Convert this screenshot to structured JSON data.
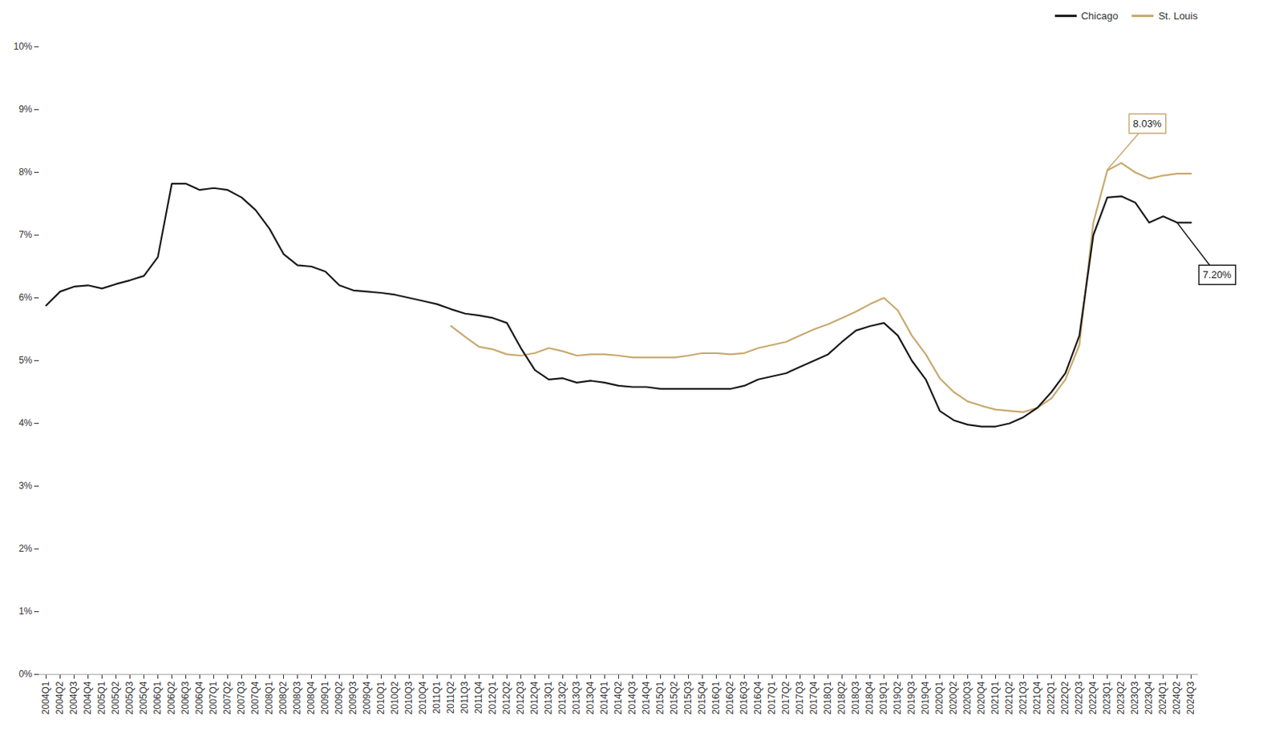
{
  "chart_data": {
    "type": "line",
    "categories": [
      "2004Q1",
      "2004Q2",
      "2004Q3",
      "2004Q4",
      "2005Q1",
      "2005Q2",
      "2005Q3",
      "2005Q4",
      "2006Q1",
      "2006Q2",
      "2006Q3",
      "2006Q4",
      "2007Q1",
      "2007Q2",
      "2007Q3",
      "2007Q4",
      "2008Q1",
      "2008Q2",
      "2008Q3",
      "2008Q4",
      "2009Q1",
      "2009Q2",
      "2009Q3",
      "2009Q4",
      "2010Q1",
      "2010Q2",
      "2010Q3",
      "2010Q4",
      "2011Q1",
      "2011Q2",
      "2011Q3",
      "2011Q4",
      "2012Q1",
      "2012Q2",
      "2012Q3",
      "2012Q4",
      "2013Q1",
      "2013Q2",
      "2013Q3",
      "2013Q4",
      "2014Q1",
      "2014Q2",
      "2014Q3",
      "2014Q4",
      "2015Q1",
      "2015Q2",
      "2015Q3",
      "2015Q4",
      "2016Q1",
      "2016Q2",
      "2016Q3",
      "2016Q4",
      "2017Q1",
      "2017Q2",
      "2017Q3",
      "2017Q4",
      "2018Q1",
      "2018Q2",
      "2018Q3",
      "2018Q4",
      "2019Q1",
      "2019Q2",
      "2019Q3",
      "2019Q4",
      "2020Q1",
      "2020Q2",
      "2020Q3",
      "2020Q4",
      "2021Q1",
      "2021Q2",
      "2021Q3",
      "2021Q4",
      "2022Q1",
      "2022Q2",
      "2022Q3",
      "2022Q4",
      "2023Q1",
      "2023Q2",
      "2023Q3",
      "2023Q4",
      "2024Q1",
      "2024Q2",
      "2024Q3"
    ],
    "series": [
      {
        "name": "Chicago",
        "color": "#1a1a1a",
        "values": [
          5.88,
          6.1,
          6.18,
          6.2,
          6.15,
          6.22,
          6.28,
          6.35,
          6.65,
          7.82,
          7.82,
          7.72,
          7.75,
          7.72,
          7.6,
          7.4,
          7.1,
          6.7,
          6.52,
          6.5,
          6.42,
          6.2,
          6.12,
          6.1,
          6.08,
          6.05,
          6.0,
          5.95,
          5.9,
          5.82,
          5.75,
          5.72,
          5.68,
          5.6,
          5.2,
          4.85,
          4.7,
          4.72,
          4.65,
          4.68,
          4.65,
          4.6,
          4.58,
          4.58,
          4.55,
          4.55,
          4.55,
          4.55,
          4.55,
          4.55,
          4.6,
          4.7,
          4.75,
          4.8,
          4.9,
          5.0,
          5.1,
          5.3,
          5.48,
          5.55,
          5.6,
          5.4,
          5.0,
          4.7,
          4.2,
          4.05,
          3.98,
          3.95,
          3.95,
          4.0,
          4.1,
          4.25,
          4.5,
          4.8,
          5.4,
          7.0,
          7.6,
          7.62,
          7.52,
          7.2,
          7.3,
          7.2,
          7.2
        ]
      },
      {
        "name": "St. Louis",
        "color": "#C8A96E",
        "values": [
          null,
          null,
          null,
          null,
          null,
          null,
          null,
          null,
          null,
          null,
          null,
          null,
          null,
          null,
          null,
          null,
          null,
          null,
          null,
          null,
          null,
          null,
          null,
          null,
          null,
          null,
          null,
          null,
          null,
          5.55,
          5.38,
          5.22,
          5.18,
          5.1,
          5.08,
          5.12,
          5.2,
          5.15,
          5.08,
          5.1,
          5.1,
          5.08,
          5.05,
          5.05,
          5.05,
          5.05,
          5.08,
          5.12,
          5.12,
          5.1,
          5.12,
          5.2,
          5.25,
          5.3,
          5.4,
          5.5,
          5.58,
          5.68,
          5.78,
          5.9,
          6.0,
          5.8,
          5.4,
          5.1,
          4.72,
          4.5,
          4.35,
          4.28,
          4.22,
          4.2,
          4.18,
          4.25,
          4.4,
          4.7,
          5.25,
          7.2,
          8.03,
          8.15,
          8.0,
          7.9,
          7.95,
          7.98,
          7.98
        ]
      }
    ],
    "ylim": [
      0,
      10
    ],
    "yticks": [
      {
        "value": 0,
        "label": "0%"
      },
      {
        "value": 1,
        "label": "1%"
      },
      {
        "value": 2,
        "label": "2%"
      },
      {
        "value": 3,
        "label": "3%"
      },
      {
        "value": 4,
        "label": "4%"
      },
      {
        "value": 5,
        "label": "5%"
      },
      {
        "value": 6,
        "label": "6%"
      },
      {
        "value": 7,
        "label": "7%"
      },
      {
        "value": 8,
        "label": "8%"
      },
      {
        "value": 9,
        "label": "9%"
      },
      {
        "value": 10,
        "label": "10%"
      }
    ],
    "grid": false,
    "legend": "upper right",
    "annotations": [
      {
        "text": "8.03%",
        "x": "2023Q1",
        "y": 8.03,
        "series": "St. Louis"
      },
      {
        "text": "7.20%",
        "x": "2024Q2",
        "y": 7.2,
        "series": "Chicago"
      }
    ]
  }
}
